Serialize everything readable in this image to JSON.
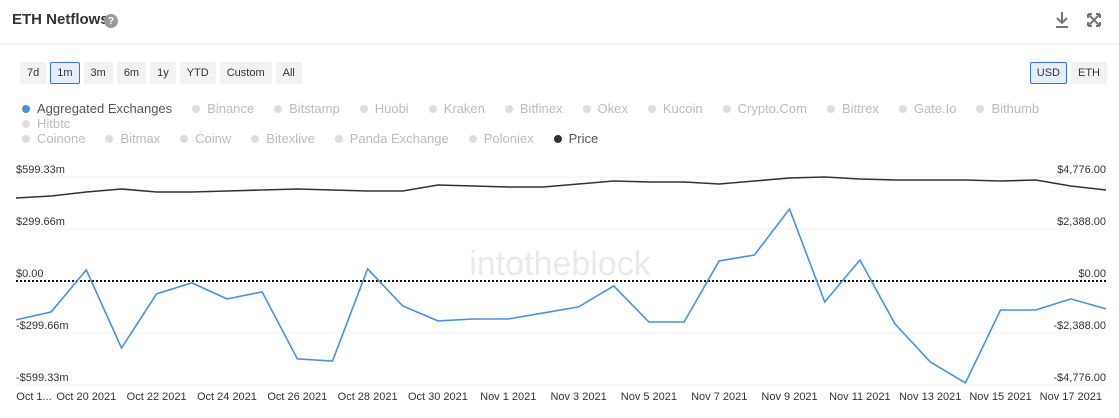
{
  "header": {
    "title": "ETH Netflows",
    "help": "?"
  },
  "range_buttons": [
    "7d",
    "1m",
    "3m",
    "6m",
    "1y",
    "YTD",
    "Custom",
    "All"
  ],
  "selected_range_index": 1,
  "currency_buttons": [
    "USD",
    "ETH"
  ],
  "selected_currency_index": 0,
  "legend_inactive": [
    "Binance",
    "Bitstamp",
    "Huobi",
    "Kraken",
    "Bitfinex",
    "Okex",
    "Kucoin",
    "Crypto.Com",
    "Bittrex",
    "Gate.Io",
    "Bithumb",
    "Hitbtc",
    "Coinone",
    "Bitmax",
    "Coinw",
    "Bitexlive",
    "Panda Exchange",
    "Poloniex"
  ],
  "chart_data": {
    "type": "line",
    "watermark": "intotheblock",
    "categories": [
      "Oct 1...",
      null,
      "Oct 20 2021",
      null,
      "Oct 22 2021",
      null,
      "Oct 24 2021",
      null,
      "Oct 26 2021",
      null,
      "Oct 28 2021",
      null,
      "Oct 30 2021",
      null,
      "Nov 1 2021",
      null,
      "Nov 3 2021",
      null,
      "Nov 5 2021",
      null,
      "Nov 7 2021",
      null,
      "Nov 9 2021",
      null,
      "Nov 11 2021",
      null,
      "Nov 13 2021",
      null,
      "Nov 15 2021",
      null,
      "Nov 17 2021",
      null
    ],
    "series": [
      {
        "name": "Aggregated Exchanges",
        "color": "#4a90e2",
        "values": [
          -224,
          -178,
          64,
          -386,
          -74,
          -11,
          -103,
          -63,
          -449,
          -461,
          70,
          -144,
          -230,
          -219,
          -219,
          -184,
          -149,
          -28,
          -236,
          -236,
          116,
          150,
          415,
          -121,
          121,
          -247,
          -466,
          -587,
          -167,
          -167,
          -103,
          -161
        ]
      },
      {
        "name": "Price",
        "color": "#333333",
        "axis": "y2",
        "values": [
          3811,
          3903,
          4087,
          4225,
          4087,
          4087,
          4133,
          4179,
          4225,
          4179,
          4133,
          4133,
          4408,
          4362,
          4316,
          4316,
          4454,
          4592,
          4546,
          4546,
          4454,
          4592,
          4730,
          4776,
          4684,
          4638,
          4638,
          4638,
          4592,
          4638,
          4362,
          4179
        ]
      }
    ],
    "ylim": [
      -599.33,
      599.33
    ],
    "yticks": [
      {
        "value": 599.33,
        "label": "$599.33m"
      },
      {
        "value": 299.66,
        "label": "$299.66m"
      },
      {
        "value": 0,
        "label": "$0.00"
      },
      {
        "value": -299.66,
        "label": "-$299.66m"
      },
      {
        "value": -599.33,
        "label": "-$599.33m"
      }
    ],
    "y2lim": [
      -4776,
      4776
    ],
    "y2ticks": [
      {
        "value": 4776,
        "label": "$4,776.00"
      },
      {
        "value": 2388,
        "label": "$2,388.00"
      },
      {
        "value": 0,
        "label": "$0.00"
      },
      {
        "value": -2388,
        "label": "-$2,388.00"
      },
      {
        "value": -4776,
        "label": "-$4,776.00"
      }
    ],
    "grid": true
  }
}
